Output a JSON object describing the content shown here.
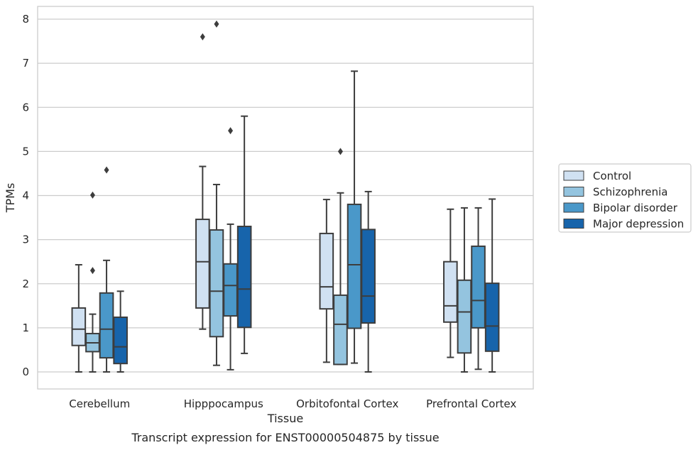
{
  "chart_data": {
    "type": "box",
    "xlabel": "Tissue",
    "ylabel": "TPMs",
    "caption": "Transcript expression for ENST00000504875 by tissue",
    "ylim": [
      -0.4,
      8.3
    ],
    "yticks": [
      0,
      1,
      2,
      3,
      4,
      5,
      6,
      7,
      8
    ],
    "grid": "horizontal",
    "legend_position": "right",
    "categories": [
      "Cerebellum",
      "Hipppocampus",
      "Orbitofontal Cortex",
      "Prefrontal Cortex"
    ],
    "series": [
      {
        "name": "Control",
        "color": "#d0e1f2",
        "boxes": [
          {
            "min": 0.0,
            "q1": 0.6,
            "median": 0.97,
            "q3": 1.45,
            "max": 2.43,
            "outliers": []
          },
          {
            "min": 0.97,
            "q1": 1.45,
            "median": 2.5,
            "q3": 3.46,
            "max": 4.66,
            "outliers": [
              7.6
            ]
          },
          {
            "min": 0.22,
            "q1": 1.43,
            "median": 1.93,
            "q3": 3.14,
            "max": 3.91,
            "outliers": []
          },
          {
            "min": 0.33,
            "q1": 1.13,
            "median": 1.5,
            "q3": 2.5,
            "max": 3.69,
            "outliers": []
          }
        ]
      },
      {
        "name": "Schizophrenia",
        "color": "#94c4df",
        "boxes": [
          {
            "min": 0.0,
            "q1": 0.46,
            "median": 0.66,
            "q3": 0.87,
            "max": 1.31,
            "outliers": [
              4.01,
              2.3
            ]
          },
          {
            "min": 0.15,
            "q1": 0.8,
            "median": 1.83,
            "q3": 3.22,
            "max": 4.25,
            "outliers": [
              7.89
            ]
          },
          {
            "min": 0.17,
            "q1": 0.17,
            "median": 1.08,
            "q3": 1.74,
            "max": 4.06,
            "outliers": [
              5.0
            ]
          },
          {
            "min": 0.0,
            "q1": 0.43,
            "median": 1.36,
            "q3": 2.08,
            "max": 3.72,
            "outliers": []
          }
        ]
      },
      {
        "name": "Bipolar disorder",
        "color": "#4a98c9",
        "boxes": [
          {
            "min": 0.0,
            "q1": 0.32,
            "median": 0.97,
            "q3": 1.79,
            "max": 2.53,
            "outliers": [
              4.58
            ]
          },
          {
            "min": 0.05,
            "q1": 1.27,
            "median": 1.96,
            "q3": 2.45,
            "max": 3.35,
            "outliers": [
              5.47
            ]
          },
          {
            "min": 0.2,
            "q1": 0.99,
            "median": 2.43,
            "q3": 3.8,
            "max": 6.82,
            "outliers": []
          },
          {
            "min": 0.06,
            "q1": 1.0,
            "median": 1.62,
            "q3": 2.85,
            "max": 3.72,
            "outliers": []
          }
        ]
      },
      {
        "name": "Major depression",
        "color": "#1764ab",
        "boxes": [
          {
            "min": 0.0,
            "q1": 0.19,
            "median": 0.57,
            "q3": 1.24,
            "max": 1.83,
            "outliers": []
          },
          {
            "min": 0.42,
            "q1": 1.01,
            "median": 1.88,
            "q3": 3.3,
            "max": 5.8,
            "outliers": []
          },
          {
            "min": 0.0,
            "q1": 1.11,
            "median": 1.72,
            "q3": 3.23,
            "max": 4.09,
            "outliers": []
          },
          {
            "min": 0.0,
            "q1": 0.47,
            "median": 1.04,
            "q3": 2.01,
            "max": 3.92,
            "outliers": []
          }
        ]
      }
    ]
  }
}
